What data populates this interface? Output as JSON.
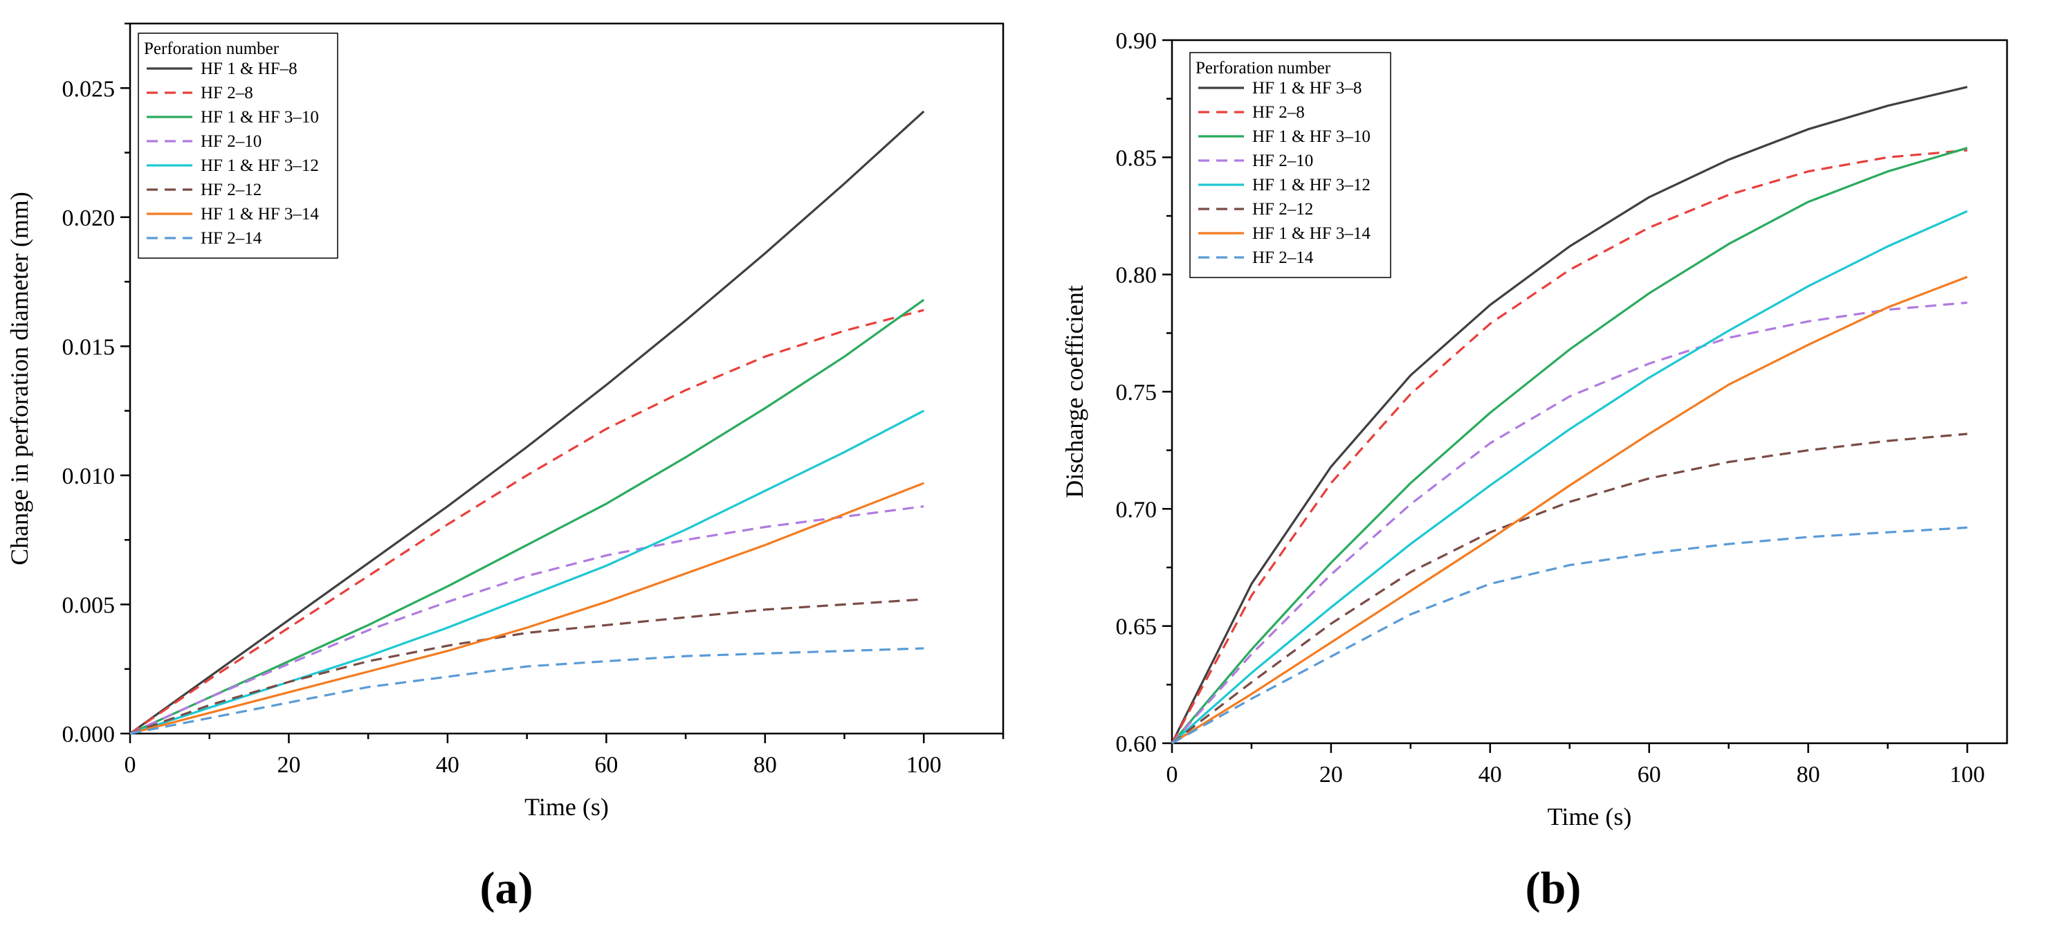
{
  "figure": {
    "panel_labels": [
      "(a)",
      "(b)"
    ]
  },
  "chart_data": [
    {
      "type": "line",
      "panel": "(a)",
      "title": "",
      "xlabel": "Time (s)",
      "ylabel": "Change in perforation diameter (mm)",
      "xlim": [
        0,
        110
      ],
      "ylim": [
        0,
        0.0275
      ],
      "xticks": [
        0,
        20,
        40,
        60,
        80,
        100
      ],
      "xtick_labels": [
        "0",
        "20",
        "40",
        "60",
        "80",
        "100"
      ],
      "yticks": [
        0,
        0.005,
        0.01,
        0.015,
        0.02,
        0.025
      ],
      "ytick_labels": [
        "0.000",
        "0.005",
        "0.010",
        "0.015",
        "0.020",
        "0.025"
      ],
      "legend_title": "Perforation number",
      "legend_position": "top-left",
      "x": [
        0,
        10,
        20,
        30,
        40,
        50,
        60,
        70,
        80,
        90,
        100
      ],
      "series": [
        {
          "name": "HF 1 & HF–8",
          "style": "solid",
          "color": "#404040",
          "values": [
            0,
            0.0022,
            0.0044,
            0.0066,
            0.0088,
            0.0111,
            0.0135,
            0.016,
            0.0186,
            0.0213,
            0.0241
          ]
        },
        {
          "name": "HF 2–8",
          "style": "dashed",
          "color": "#e8403c",
          "values": [
            0,
            0.0021,
            0.0041,
            0.0061,
            0.0081,
            0.01,
            0.0118,
            0.0133,
            0.0146,
            0.0156,
            0.0164
          ]
        },
        {
          "name": "HF 1 & HF 3–10",
          "style": "solid",
          "color": "#2bab5e",
          "values": [
            0,
            0.0014,
            0.0028,
            0.0042,
            0.0057,
            0.0073,
            0.0089,
            0.0107,
            0.0126,
            0.0146,
            0.0168
          ]
        },
        {
          "name": "HF 2–10",
          "style": "dashed",
          "color": "#b07be0",
          "values": [
            0,
            0.0014,
            0.0027,
            0.004,
            0.0051,
            0.0061,
            0.0069,
            0.0075,
            0.008,
            0.0084,
            0.0088
          ]
        },
        {
          "name": "HF 1 & HF 3–12",
          "style": "solid",
          "color": "#1ec8d2",
          "values": [
            0,
            0.001,
            0.002,
            0.003,
            0.0041,
            0.0053,
            0.0065,
            0.0079,
            0.0094,
            0.0109,
            0.0125
          ]
        },
        {
          "name": "HF 2–12",
          "style": "dashed",
          "color": "#7a4b45",
          "values": [
            0,
            0.0011,
            0.002,
            0.0028,
            0.0034,
            0.0039,
            0.0042,
            0.0045,
            0.0048,
            0.005,
            0.0052
          ]
        },
        {
          "name": "HF 1 & HF 3–14",
          "style": "solid",
          "color": "#f47c20",
          "values": [
            0,
            0.0008,
            0.0016,
            0.0024,
            0.0032,
            0.0041,
            0.0051,
            0.0062,
            0.0073,
            0.0085,
            0.0097
          ]
        },
        {
          "name": "HF 2–14",
          "style": "dashed",
          "color": "#5a9bd6",
          "values": [
            0,
            0.0006,
            0.0012,
            0.0018,
            0.0022,
            0.0026,
            0.0028,
            0.003,
            0.0031,
            0.0032,
            0.0033
          ]
        }
      ]
    },
    {
      "type": "line",
      "panel": "(b)",
      "title": "",
      "xlabel": "Time (s)",
      "ylabel": "Discharge coefficient",
      "xlim": [
        0,
        105
      ],
      "ylim": [
        0.6,
        0.9
      ],
      "xticks": [
        0,
        20,
        40,
        60,
        80,
        100
      ],
      "xtick_labels": [
        "0",
        "20",
        "40",
        "60",
        "80",
        "100"
      ],
      "yticks": [
        0.6,
        0.65,
        0.7,
        0.75,
        0.8,
        0.85,
        0.9
      ],
      "ytick_labels": [
        "0.60",
        "0.65",
        "0.70",
        "0.75",
        "0.80",
        "0.85",
        "0.90"
      ],
      "legend_title": "Perforation number",
      "legend_position": "top-left",
      "x": [
        0,
        10,
        20,
        30,
        40,
        50,
        60,
        70,
        80,
        90,
        100
      ],
      "series": [
        {
          "name": "HF 1 & HF 3–8",
          "style": "solid",
          "color": "#404040",
          "values": [
            0.6,
            0.668,
            0.718,
            0.757,
            0.787,
            0.812,
            0.833,
            0.849,
            0.862,
            0.872,
            0.88
          ]
        },
        {
          "name": "HF 2–8",
          "style": "dashed",
          "color": "#e8403c",
          "values": [
            0.6,
            0.663,
            0.711,
            0.749,
            0.779,
            0.802,
            0.82,
            0.834,
            0.844,
            0.85,
            0.853
          ]
        },
        {
          "name": "HF 1 & HF 3–10",
          "style": "solid",
          "color": "#2bab5e",
          "values": [
            0.6,
            0.64,
            0.677,
            0.711,
            0.741,
            0.768,
            0.792,
            0.813,
            0.831,
            0.844,
            0.854
          ]
        },
        {
          "name": "HF 2–10",
          "style": "dashed",
          "color": "#b07be0",
          "values": [
            0.6,
            0.638,
            0.672,
            0.702,
            0.728,
            0.748,
            0.762,
            0.773,
            0.78,
            0.785,
            0.788
          ]
        },
        {
          "name": "HF 1 & HF 3–12",
          "style": "solid",
          "color": "#1ec8d2",
          "values": [
            0.6,
            0.63,
            0.658,
            0.685,
            0.71,
            0.734,
            0.756,
            0.776,
            0.795,
            0.812,
            0.827
          ]
        },
        {
          "name": "HF 2–12",
          "style": "dashed",
          "color": "#7a4b45",
          "values": [
            0.6,
            0.626,
            0.651,
            0.673,
            0.69,
            0.703,
            0.713,
            0.72,
            0.725,
            0.729,
            0.732
          ]
        },
        {
          "name": "HF 1 & HF 3–14",
          "style": "solid",
          "color": "#f47c20",
          "values": [
            0.6,
            0.621,
            0.643,
            0.665,
            0.687,
            0.71,
            0.732,
            0.753,
            0.77,
            0.786,
            0.799
          ]
        },
        {
          "name": "HF 2–14",
          "style": "dashed",
          "color": "#5a9bd6",
          "values": [
            0.6,
            0.619,
            0.637,
            0.655,
            0.668,
            0.676,
            0.681,
            0.685,
            0.688,
            0.69,
            0.692
          ]
        }
      ]
    }
  ]
}
